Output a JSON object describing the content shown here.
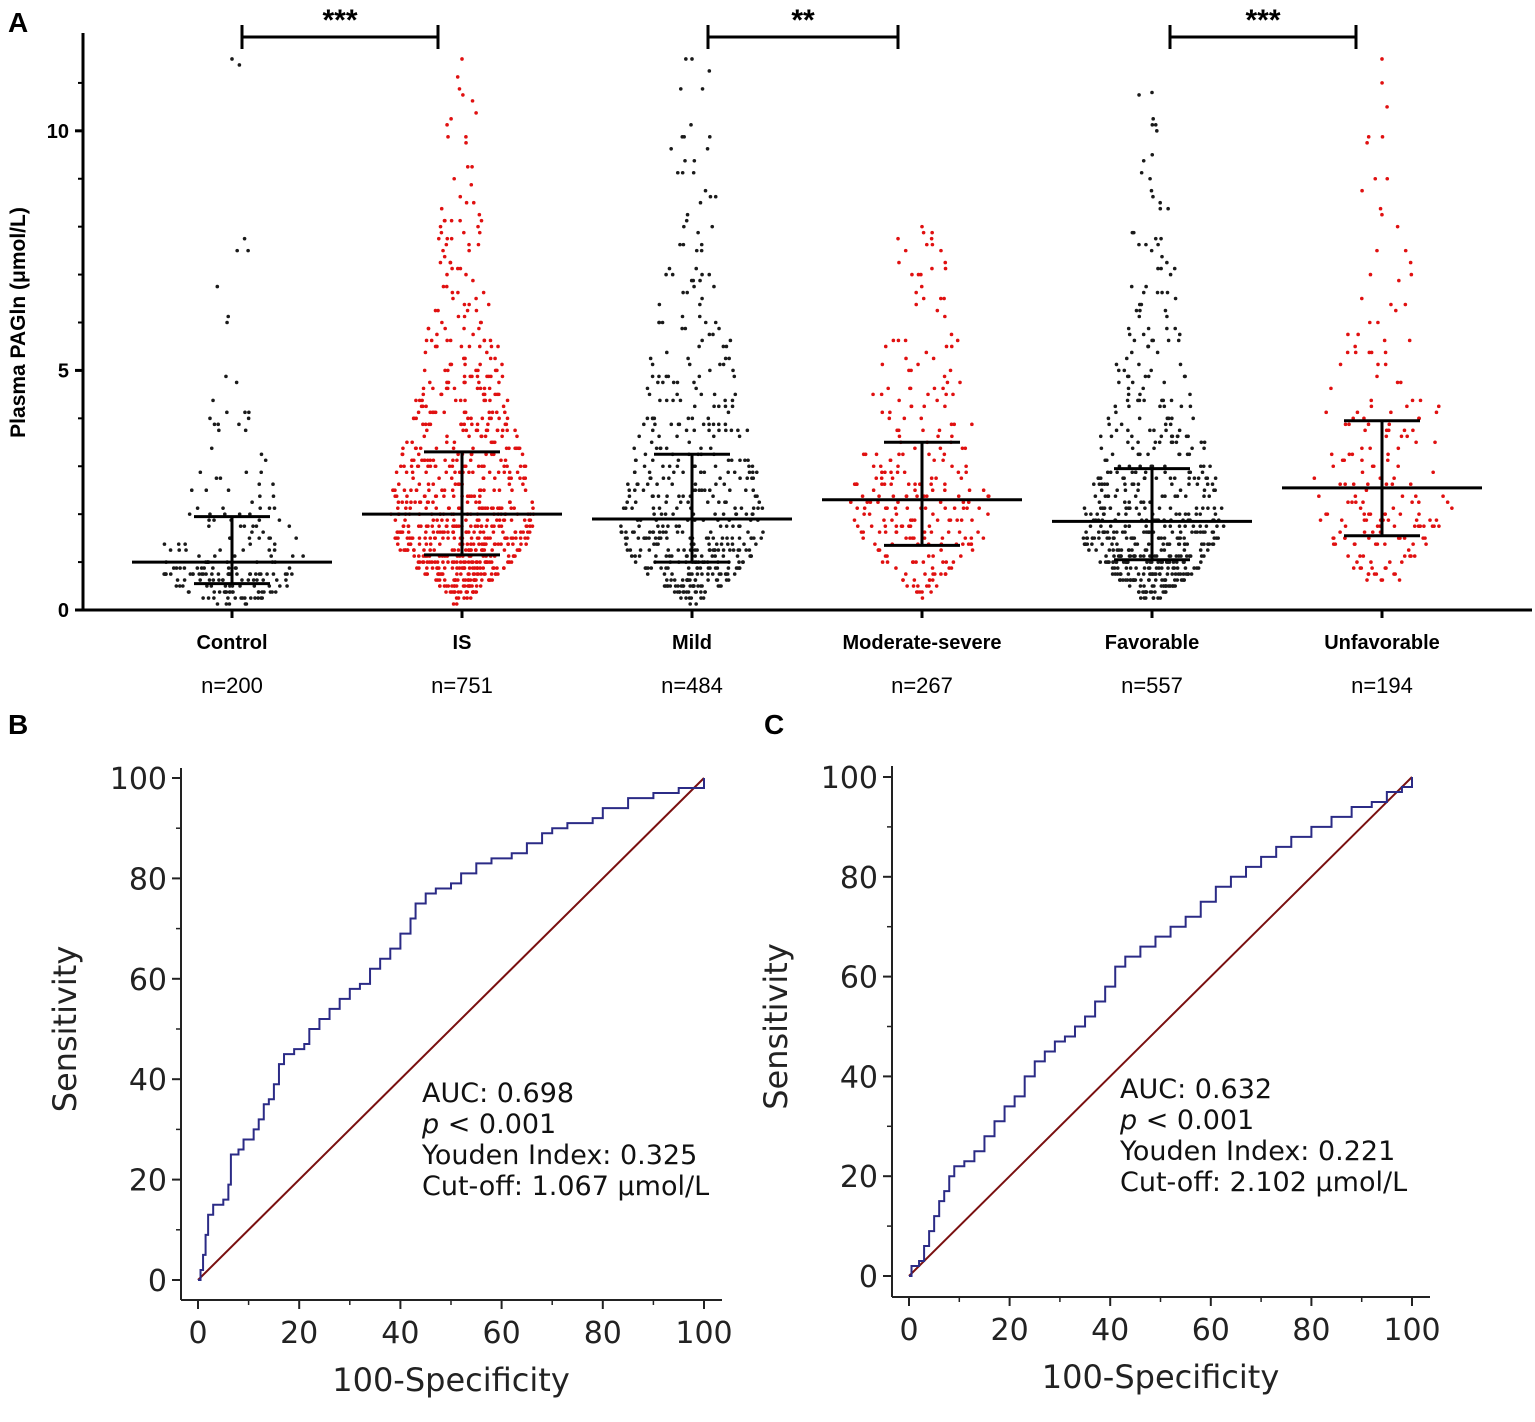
{
  "panels": {
    "a": "A",
    "b": "B",
    "c": "C"
  },
  "colors": {
    "control": "#1a1a1a",
    "case": "#e01010",
    "roc_curve": "#2b2b86",
    "reference": "#7a1010"
  },
  "chart_data": [
    {
      "type": "scatter",
      "subtype": "dot-plot-with-median-iqr",
      "panel": "A",
      "title": "",
      "ylabel": "Plasma PAGln (μmol/L)",
      "ylim": [
        0,
        12
      ],
      "yticks": [
        "0",
        "5",
        "10"
      ],
      "groups": [
        {
          "name": "Control",
          "n_label": "n=200",
          "n": 200,
          "median": 1.0,
          "q1": 0.55,
          "q3": 1.95,
          "max": 11.5,
          "color": "#1a1a1a"
        },
        {
          "name": "IS",
          "n_label": "n=751",
          "n": 751,
          "median": 2.0,
          "q1": 1.15,
          "q3": 3.3,
          "max": 11.5,
          "color": "#e01010"
        },
        {
          "name": "Mild",
          "n_label": "n=484",
          "n": 484,
          "median": 1.9,
          "q1": 1.0,
          "q3": 3.25,
          "max": 11.5,
          "color": "#1a1a1a"
        },
        {
          "name": "Moderate-severe",
          "n_label": "n=267",
          "n": 267,
          "median": 2.3,
          "q1": 1.35,
          "q3": 3.5,
          "max": 8.0,
          "color": "#e01010"
        },
        {
          "name": "Favorable",
          "n_label": "n=557",
          "n": 557,
          "median": 1.85,
          "q1": 1.05,
          "q3": 2.95,
          "max": 10.8,
          "color": "#1a1a1a"
        },
        {
          "name": "Unfavorable",
          "n_label": "n=194",
          "n": 194,
          "median": 2.55,
          "q1": 1.55,
          "q3": 3.95,
          "max": 11.5,
          "color": "#e01010"
        }
      ],
      "comparisons": [
        {
          "from": "Control",
          "to": "IS",
          "label": "***"
        },
        {
          "from": "Mild",
          "to": "Moderate-severe",
          "label": "**"
        },
        {
          "from": "Favorable",
          "to": "Unfavorable",
          "label": "***"
        }
      ]
    },
    {
      "type": "line",
      "subtype": "roc",
      "panel": "B",
      "xlabel": "100-Specificity",
      "ylabel": "Sensitivity",
      "xlim": [
        0,
        100
      ],
      "ylim": [
        0,
        100
      ],
      "xticks": [
        "0",
        "20",
        "40",
        "60",
        "80",
        "100"
      ],
      "yticks": [
        "0",
        "20",
        "40",
        "60",
        "80",
        "100"
      ],
      "curve": [
        [
          0,
          0
        ],
        [
          0.5,
          2
        ],
        [
          1,
          5
        ],
        [
          1.5,
          9
        ],
        [
          2,
          13
        ],
        [
          3,
          15
        ],
        [
          5,
          16
        ],
        [
          6,
          19
        ],
        [
          6.5,
          25
        ],
        [
          8,
          26
        ],
        [
          9,
          28
        ],
        [
          11,
          30
        ],
        [
          12,
          32
        ],
        [
          13,
          35
        ],
        [
          14,
          36
        ],
        [
          15,
          39
        ],
        [
          16,
          43
        ],
        [
          17,
          45
        ],
        [
          19,
          46
        ],
        [
          21,
          47
        ],
        [
          22,
          50
        ],
        [
          24,
          52
        ],
        [
          26,
          54
        ],
        [
          28,
          56
        ],
        [
          30,
          58
        ],
        [
          32,
          59
        ],
        [
          34,
          62
        ],
        [
          36,
          64
        ],
        [
          38,
          66
        ],
        [
          40,
          69
        ],
        [
          42,
          72
        ],
        [
          43,
          75
        ],
        [
          45,
          77
        ],
        [
          47,
          78
        ],
        [
          50,
          79
        ],
        [
          52,
          81
        ],
        [
          55,
          83
        ],
        [
          58,
          84
        ],
        [
          62,
          85
        ],
        [
          65,
          87
        ],
        [
          68,
          89
        ],
        [
          70,
          90
        ],
        [
          73,
          91
        ],
        [
          78,
          92
        ],
        [
          80,
          94
        ],
        [
          85,
          96
        ],
        [
          90,
          97
        ],
        [
          95,
          98
        ],
        [
          100,
          100
        ]
      ],
      "reference": [
        [
          0,
          0
        ],
        [
          100,
          100
        ]
      ],
      "annotation": {
        "auc": "AUC: 0.698",
        "p_symbol": "p",
        "p_rest": " < 0.001",
        "youden": "Youden Index: 0.325",
        "cutoff": "Cut-off: 1.067 μmol/L"
      }
    },
    {
      "type": "line",
      "subtype": "roc",
      "panel": "C",
      "xlabel": "100-Specificity",
      "ylabel": "Sensitivity",
      "xlim": [
        0,
        100
      ],
      "ylim": [
        0,
        100
      ],
      "xticks": [
        "0",
        "20",
        "40",
        "60",
        "80",
        "100"
      ],
      "yticks": [
        "0",
        "20",
        "40",
        "60",
        "80",
        "100"
      ],
      "curve": [
        [
          0,
          0
        ],
        [
          0.5,
          2
        ],
        [
          2,
          3
        ],
        [
          3,
          6
        ],
        [
          4,
          9
        ],
        [
          5,
          12
        ],
        [
          6,
          15
        ],
        [
          7,
          17
        ],
        [
          8,
          20
        ],
        [
          9,
          22
        ],
        [
          11,
          23
        ],
        [
          13,
          25
        ],
        [
          15,
          28
        ],
        [
          17,
          31
        ],
        [
          19,
          34
        ],
        [
          21,
          36
        ],
        [
          23,
          40
        ],
        [
          25,
          43
        ],
        [
          27,
          45
        ],
        [
          29,
          47
        ],
        [
          31,
          48
        ],
        [
          33,
          50
        ],
        [
          35,
          52
        ],
        [
          37,
          55
        ],
        [
          39,
          58
        ],
        [
          41,
          62
        ],
        [
          43,
          64
        ],
        [
          46,
          66
        ],
        [
          49,
          68
        ],
        [
          52,
          70
        ],
        [
          55,
          72
        ],
        [
          58,
          75
        ],
        [
          61,
          78
        ],
        [
          64,
          80
        ],
        [
          67,
          82
        ],
        [
          70,
          84
        ],
        [
          73,
          86
        ],
        [
          76,
          88
        ],
        [
          80,
          90
        ],
        [
          84,
          92
        ],
        [
          88,
          94
        ],
        [
          92,
          95
        ],
        [
          95,
          97
        ],
        [
          98,
          98
        ],
        [
          100,
          100
        ]
      ],
      "reference": [
        [
          0,
          0
        ],
        [
          100,
          100
        ]
      ],
      "annotation": {
        "auc": "AUC: 0.632",
        "p_symbol": "p",
        "p_rest": " < 0.001",
        "youden": "Youden Index: 0.221",
        "cutoff": "Cut-off: 2.102 μmol/L"
      }
    }
  ]
}
